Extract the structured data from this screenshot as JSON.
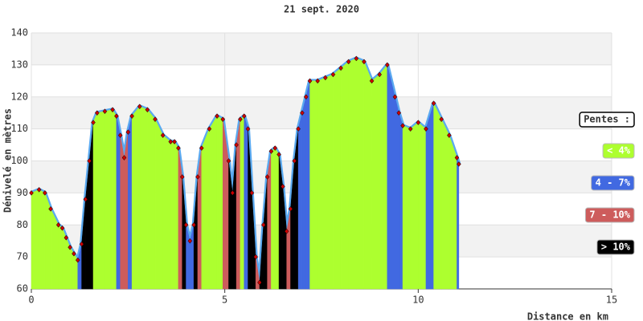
{
  "chart_data": {
    "type": "area",
    "title": "21 sept. 2020",
    "xlabel": "Distance en km",
    "ylabel": "Dénivelé en mètres",
    "x": [
      0,
      0.2,
      0.35,
      0.5,
      0.7,
      0.8,
      0.9,
      1.0,
      1.1,
      1.2,
      1.3,
      1.4,
      1.5,
      1.6,
      1.7,
      1.9,
      2.1,
      2.2,
      2.3,
      2.4,
      2.5,
      2.6,
      2.8,
      3.0,
      3.2,
      3.4,
      3.6,
      3.7,
      3.8,
      3.9,
      4.0,
      4.1,
      4.2,
      4.3,
      4.4,
      4.6,
      4.8,
      4.95,
      5.1,
      5.2,
      5.3,
      5.4,
      5.5,
      5.6,
      5.7,
      5.8,
      5.9,
      6.0,
      6.1,
      6.2,
      6.3,
      6.4,
      6.5,
      6.6,
      6.7,
      6.8,
      6.9,
      7.0,
      7.1,
      7.2,
      7.4,
      7.6,
      7.8,
      8.0,
      8.2,
      8.4,
      8.6,
      8.8,
      9.0,
      9.2,
      9.4,
      9.5,
      9.6,
      9.8,
      10.0,
      10.2,
      10.4,
      10.6,
      10.8,
      11.0,
      11.05
    ],
    "values": [
      90,
      91,
      90,
      85,
      80,
      79,
      76,
      73,
      71,
      69,
      74,
      88,
      100,
      112,
      115,
      115.5,
      116,
      114,
      108,
      101,
      109,
      114,
      117,
      116,
      113,
      108,
      106,
      106,
      104,
      95,
      80,
      75,
      80,
      95,
      104,
      110,
      114,
      113,
      100,
      90,
      105,
      113,
      114,
      110,
      90,
      70,
      62,
      80,
      95,
      103,
      104,
      102,
      92,
      78,
      85,
      100,
      110,
      115,
      120,
      125,
      125,
      126,
      127,
      129,
      131,
      132,
      131,
      125,
      127,
      130,
      120,
      115,
      111,
      110,
      112,
      110,
      118,
      113,
      108,
      101,
      99
    ],
    "slope_class": [
      0,
      0,
      0,
      0,
      0,
      0,
      0,
      0,
      0,
      1,
      3,
      3,
      3,
      0,
      0,
      0,
      0,
      1,
      2,
      2,
      1,
      0,
      0,
      0,
      0,
      0,
      0,
      0,
      2,
      3,
      1,
      1,
      3,
      2,
      0,
      0,
      0,
      2,
      3,
      3,
      2,
      0,
      1,
      3,
      3,
      2,
      3,
      3,
      2,
      0,
      0,
      3,
      3,
      2,
      3,
      3,
      1,
      1,
      1,
      0,
      0,
      0,
      0,
      0,
      0,
      0,
      0,
      0,
      0,
      1,
      1,
      1,
      0,
      0,
      0,
      1,
      0,
      0,
      0,
      1
    ],
    "line_color": "#5aa9f0",
    "marker_color": "#cc0000",
    "xlim": [
      0,
      15
    ],
    "xticks": [
      0,
      5,
      10,
      15
    ],
    "ylim": [
      60,
      140
    ],
    "yticks": [
      60,
      70,
      80,
      90,
      100,
      110,
      120,
      130,
      140
    ],
    "grid": true,
    "legend": {
      "title": "Pentes :",
      "items": [
        {
          "label": "< 4%",
          "color": "#adff2f"
        },
        {
          "label": "4 - 7%",
          "color": "#4169e1"
        },
        {
          "label": "7 - 10%",
          "color": "#cd5c5c"
        },
        {
          "label": "> 10%",
          "color": "#000000"
        }
      ]
    }
  }
}
